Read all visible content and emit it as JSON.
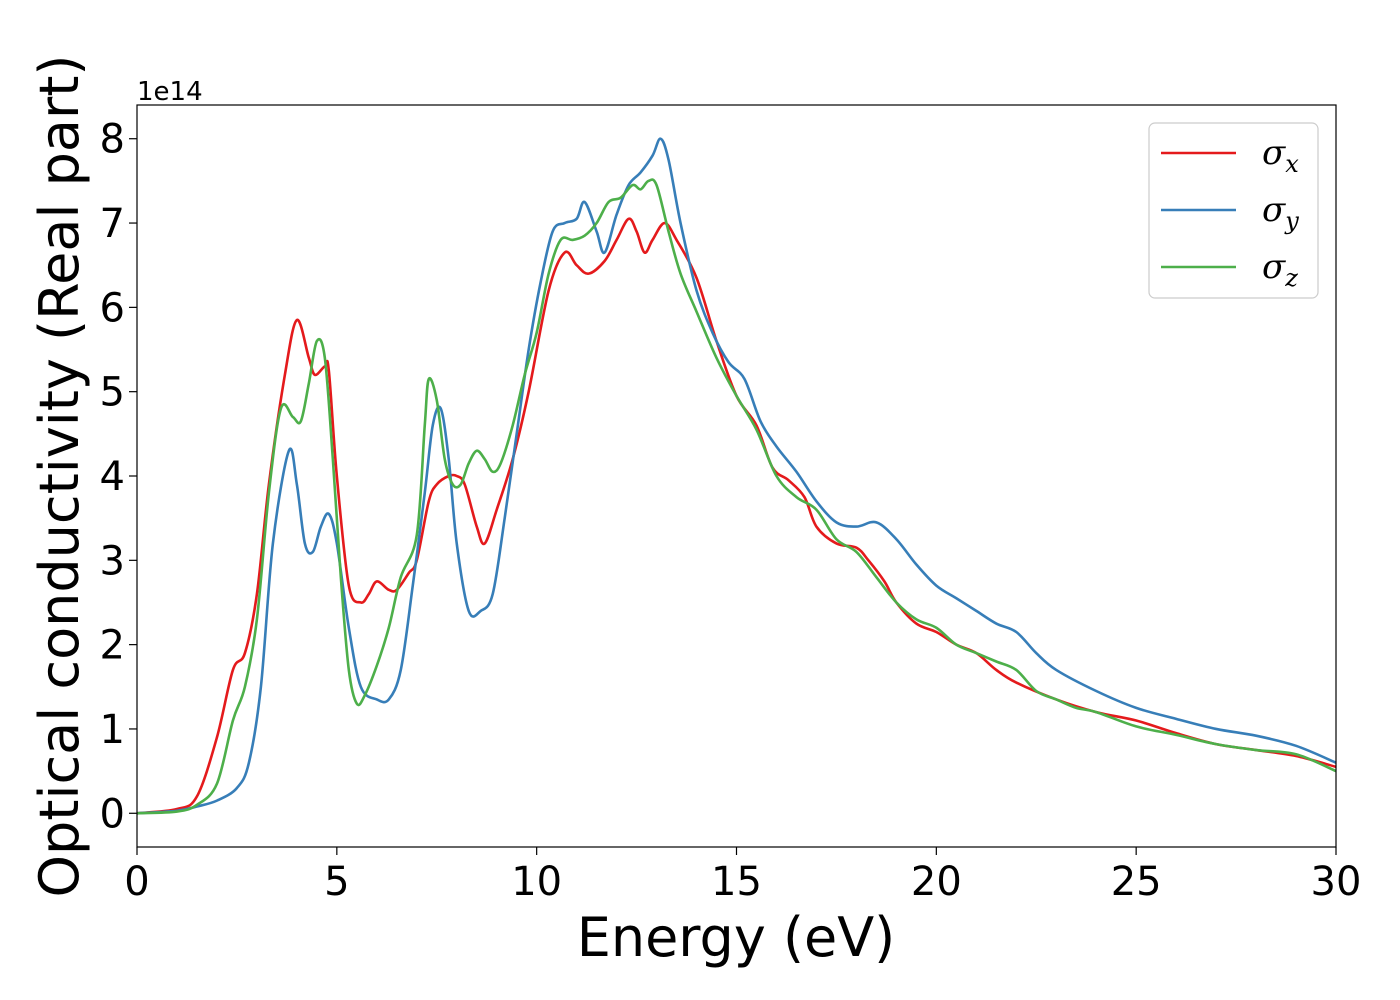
{
  "chart_data": {
    "type": "line",
    "xlabel": "Energy (eV)",
    "ylabel": "Optical conductivity (Real part)",
    "y_offset_text": "1e14",
    "xlim": [
      0,
      30
    ],
    "ylim": [
      -0.4,
      8.4
    ],
    "x_ticks": [
      0,
      5,
      10,
      15,
      20,
      25,
      30
    ],
    "y_ticks": [
      0,
      1,
      2,
      3,
      4,
      5,
      6,
      7,
      8
    ],
    "grid": false,
    "legend_position": "top-right",
    "series": [
      {
        "name": "σx",
        "legend_symbol": "σ",
        "legend_sub": "x",
        "color": "#e41a1c",
        "points": [
          [
            0,
            0
          ],
          [
            1,
            0.05
          ],
          [
            1.5,
            0.2
          ],
          [
            2,
            0.9
          ],
          [
            2.4,
            1.7
          ],
          [
            2.7,
            1.9
          ],
          [
            3.0,
            2.6
          ],
          [
            3.3,
            3.9
          ],
          [
            3.7,
            5.2
          ],
          [
            4.0,
            5.85
          ],
          [
            4.3,
            5.4
          ],
          [
            4.45,
            5.2
          ],
          [
            4.7,
            5.3
          ],
          [
            4.8,
            5.25
          ],
          [
            5.0,
            4.0
          ],
          [
            5.3,
            2.7
          ],
          [
            5.6,
            2.5
          ],
          [
            5.8,
            2.6
          ],
          [
            6.0,
            2.75
          ],
          [
            6.3,
            2.65
          ],
          [
            6.5,
            2.65
          ],
          [
            6.8,
            2.85
          ],
          [
            7.0,
            3.0
          ],
          [
            7.3,
            3.7
          ],
          [
            7.5,
            3.9
          ],
          [
            7.8,
            4.0
          ],
          [
            8.0,
            4.0
          ],
          [
            8.2,
            3.9
          ],
          [
            8.5,
            3.4
          ],
          [
            8.7,
            3.2
          ],
          [
            9.0,
            3.6
          ],
          [
            9.4,
            4.2
          ],
          [
            9.8,
            5.0
          ],
          [
            10.3,
            6.2
          ],
          [
            10.7,
            6.65
          ],
          [
            11.0,
            6.5
          ],
          [
            11.3,
            6.4
          ],
          [
            11.7,
            6.55
          ],
          [
            12.0,
            6.8
          ],
          [
            12.3,
            7.05
          ],
          [
            12.5,
            6.9
          ],
          [
            12.7,
            6.65
          ],
          [
            12.9,
            6.8
          ],
          [
            13.2,
            7.0
          ],
          [
            13.5,
            6.8
          ],
          [
            14.0,
            6.35
          ],
          [
            14.5,
            5.6
          ],
          [
            15.0,
            4.95
          ],
          [
            15.5,
            4.6
          ],
          [
            15.9,
            4.1
          ],
          [
            16.3,
            3.95
          ],
          [
            16.7,
            3.75
          ],
          [
            17.0,
            3.4
          ],
          [
            17.5,
            3.2
          ],
          [
            18.0,
            3.15
          ],
          [
            18.3,
            3.0
          ],
          [
            18.7,
            2.75
          ],
          [
            19.0,
            2.5
          ],
          [
            19.5,
            2.25
          ],
          [
            20.0,
            2.15
          ],
          [
            20.5,
            2.0
          ],
          [
            21.0,
            1.9
          ],
          [
            21.5,
            1.7
          ],
          [
            22.0,
            1.55
          ],
          [
            23.0,
            1.35
          ],
          [
            24.0,
            1.2
          ],
          [
            25.0,
            1.1
          ],
          [
            26.0,
            0.95
          ],
          [
            27.0,
            0.82
          ],
          [
            28.0,
            0.75
          ],
          [
            29.0,
            0.68
          ],
          [
            30.0,
            0.55
          ]
        ]
      },
      {
        "name": "σy",
        "legend_symbol": "σ",
        "legend_sub": "y",
        "color": "#377eb8",
        "points": [
          [
            0,
            0
          ],
          [
            1,
            0.03
          ],
          [
            1.5,
            0.08
          ],
          [
            2,
            0.15
          ],
          [
            2.5,
            0.3
          ],
          [
            2.8,
            0.6
          ],
          [
            3.1,
            1.5
          ],
          [
            3.4,
            3.2
          ],
          [
            3.8,
            4.3
          ],
          [
            4.0,
            3.9
          ],
          [
            4.2,
            3.2
          ],
          [
            4.4,
            3.1
          ],
          [
            4.6,
            3.4
          ],
          [
            4.8,
            3.55
          ],
          [
            5.0,
            3.2
          ],
          [
            5.3,
            2.2
          ],
          [
            5.6,
            1.5
          ],
          [
            6.0,
            1.35
          ],
          [
            6.3,
            1.35
          ],
          [
            6.6,
            1.7
          ],
          [
            6.9,
            2.7
          ],
          [
            7.2,
            3.8
          ],
          [
            7.4,
            4.6
          ],
          [
            7.6,
            4.8
          ],
          [
            7.8,
            4.2
          ],
          [
            8.0,
            3.2
          ],
          [
            8.3,
            2.4
          ],
          [
            8.6,
            2.4
          ],
          [
            8.9,
            2.6
          ],
          [
            9.2,
            3.5
          ],
          [
            9.5,
            4.5
          ],
          [
            9.8,
            5.5
          ],
          [
            10.1,
            6.3
          ],
          [
            10.4,
            6.9
          ],
          [
            10.7,
            7.0
          ],
          [
            11.0,
            7.05
          ],
          [
            11.2,
            7.25
          ],
          [
            11.5,
            6.9
          ],
          [
            11.7,
            6.65
          ],
          [
            12.0,
            7.1
          ],
          [
            12.3,
            7.45
          ],
          [
            12.6,
            7.6
          ],
          [
            12.9,
            7.8
          ],
          [
            13.1,
            8.0
          ],
          [
            13.3,
            7.75
          ],
          [
            13.6,
            7.0
          ],
          [
            14.0,
            6.2
          ],
          [
            14.4,
            5.7
          ],
          [
            14.8,
            5.35
          ],
          [
            15.2,
            5.15
          ],
          [
            15.6,
            4.65
          ],
          [
            16.0,
            4.35
          ],
          [
            16.5,
            4.05
          ],
          [
            17.0,
            3.7
          ],
          [
            17.5,
            3.45
          ],
          [
            18.0,
            3.4
          ],
          [
            18.5,
            3.45
          ],
          [
            19.0,
            3.25
          ],
          [
            19.5,
            2.95
          ],
          [
            20.0,
            2.7
          ],
          [
            20.5,
            2.55
          ],
          [
            21.0,
            2.4
          ],
          [
            21.5,
            2.25
          ],
          [
            22.0,
            2.15
          ],
          [
            22.5,
            1.9
          ],
          [
            23.0,
            1.7
          ],
          [
            24.0,
            1.45
          ],
          [
            25.0,
            1.25
          ],
          [
            26.0,
            1.12
          ],
          [
            27.0,
            1.0
          ],
          [
            28.0,
            0.92
          ],
          [
            29.0,
            0.8
          ],
          [
            30.0,
            0.6
          ]
        ]
      },
      {
        "name": "σz",
        "legend_symbol": "σ",
        "legend_sub": "z",
        "color": "#4daf4a",
        "points": [
          [
            0,
            0
          ],
          [
            1,
            0.02
          ],
          [
            1.5,
            0.1
          ],
          [
            2,
            0.35
          ],
          [
            2.4,
            1.1
          ],
          [
            2.7,
            1.5
          ],
          [
            3.0,
            2.3
          ],
          [
            3.3,
            3.8
          ],
          [
            3.6,
            4.8
          ],
          [
            3.9,
            4.7
          ],
          [
            4.1,
            4.65
          ],
          [
            4.3,
            5.1
          ],
          [
            4.5,
            5.6
          ],
          [
            4.7,
            5.4
          ],
          [
            4.9,
            4.2
          ],
          [
            5.1,
            2.8
          ],
          [
            5.3,
            1.7
          ],
          [
            5.5,
            1.3
          ],
          [
            5.7,
            1.4
          ],
          [
            6.0,
            1.75
          ],
          [
            6.3,
            2.2
          ],
          [
            6.6,
            2.8
          ],
          [
            7.0,
            3.3
          ],
          [
            7.2,
            4.6
          ],
          [
            7.3,
            5.15
          ],
          [
            7.5,
            4.9
          ],
          [
            7.7,
            4.2
          ],
          [
            7.9,
            3.9
          ],
          [
            8.1,
            3.9
          ],
          [
            8.3,
            4.15
          ],
          [
            8.5,
            4.3
          ],
          [
            8.7,
            4.2
          ],
          [
            8.9,
            4.05
          ],
          [
            9.1,
            4.15
          ],
          [
            9.4,
            4.6
          ],
          [
            9.7,
            5.2
          ],
          [
            10.0,
            5.7
          ],
          [
            10.3,
            6.4
          ],
          [
            10.6,
            6.8
          ],
          [
            10.9,
            6.8
          ],
          [
            11.2,
            6.85
          ],
          [
            11.5,
            7.0
          ],
          [
            11.8,
            7.25
          ],
          [
            12.1,
            7.3
          ],
          [
            12.4,
            7.45
          ],
          [
            12.6,
            7.4
          ],
          [
            12.8,
            7.5
          ],
          [
            13.0,
            7.45
          ],
          [
            13.3,
            6.9
          ],
          [
            13.6,
            6.4
          ],
          [
            14.0,
            5.95
          ],
          [
            14.5,
            5.4
          ],
          [
            15.0,
            4.95
          ],
          [
            15.5,
            4.55
          ],
          [
            16.0,
            4.0
          ],
          [
            16.5,
            3.75
          ],
          [
            17.0,
            3.6
          ],
          [
            17.5,
            3.25
          ],
          [
            18.0,
            3.1
          ],
          [
            18.5,
            2.8
          ],
          [
            19.0,
            2.5
          ],
          [
            19.5,
            2.3
          ],
          [
            20.0,
            2.2
          ],
          [
            20.5,
            2.0
          ],
          [
            21.0,
            1.9
          ],
          [
            21.5,
            1.8
          ],
          [
            22.0,
            1.7
          ],
          [
            22.5,
            1.45
          ],
          [
            23.0,
            1.35
          ],
          [
            23.5,
            1.25
          ],
          [
            24.0,
            1.2
          ],
          [
            25.0,
            1.03
          ],
          [
            26.0,
            0.93
          ],
          [
            27.0,
            0.82
          ],
          [
            28.0,
            0.75
          ],
          [
            29.0,
            0.7
          ],
          [
            30.0,
            0.5
          ]
        ]
      }
    ]
  }
}
